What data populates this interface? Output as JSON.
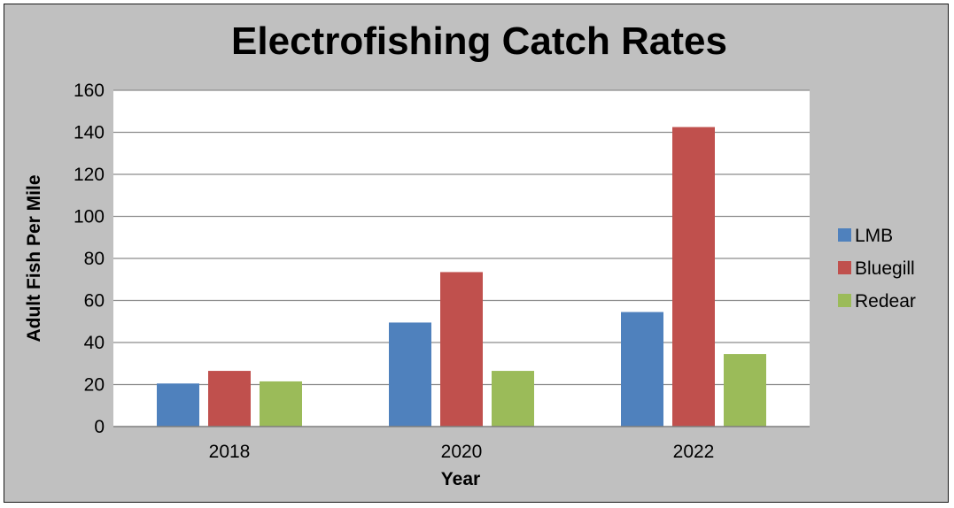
{
  "chart_data": {
    "type": "bar",
    "title": "Electrofishing Catch Rates",
    "xlabel": "Year",
    "ylabel": "Adult Fish Per Mile",
    "categories": [
      "2018",
      "2020",
      "2022"
    ],
    "series": [
      {
        "name": "LMB",
        "values": [
          20.5,
          49.5,
          54.5
        ],
        "color": "#4f81bd"
      },
      {
        "name": "Bluegill",
        "values": [
          26.5,
          73.5,
          142.5
        ],
        "color": "#c0504d"
      },
      {
        "name": "Redear",
        "values": [
          21.5,
          26.5,
          34.5
        ],
        "color": "#9bbb59"
      }
    ],
    "ylim": [
      0,
      160
    ],
    "yticks": [
      "0",
      "20",
      "40",
      "60",
      "80",
      "100",
      "120",
      "140",
      "160"
    ],
    "grid": true,
    "legend": "right"
  }
}
